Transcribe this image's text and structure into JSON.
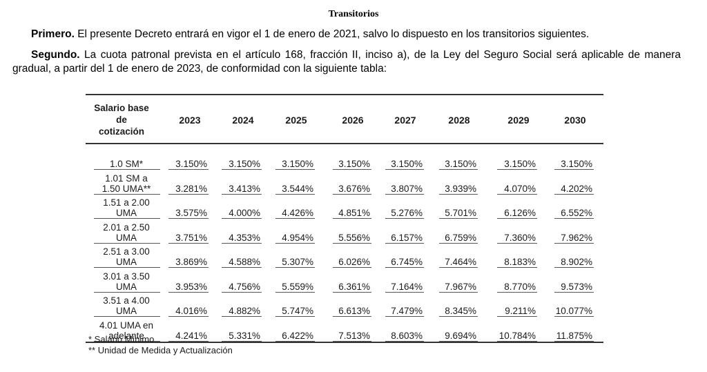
{
  "heading": "Transitorios",
  "primero": {
    "label": "Primero.",
    "text": " El presente Decreto entrará en vigor el 1 de enero de 2021, salvo lo dispuesto en los transitorios siguientes."
  },
  "segundo": {
    "label": "Segundo.",
    "text": " La cuota patronal prevista en el artículo 168, fracción II, inciso a), de la Ley del Seguro Social será aplicable de manera gradual, a partir del 1 de enero de 2023, de conformidad con la siguiente tabla:"
  },
  "table": {
    "header_first_line1": "Salario base",
    "header_first_line2": "de",
    "header_first_line3": "cotización",
    "years": [
      "2023",
      "2024",
      "2025",
      "2026",
      "2027",
      "2028",
      "2029",
      "2030"
    ],
    "rows": [
      {
        "l1": "",
        "l2": "1.0 SM*",
        "v": [
          "3.150%",
          "3.150%",
          "3.150%",
          "3.150%",
          "3.150%",
          "3.150%",
          "3.150%",
          "3.150%"
        ]
      },
      {
        "l1": "1.01 SM a",
        "l2": "1.50 UMA**",
        "v": [
          "3.281%",
          "3.413%",
          "3.544%",
          "3.676%",
          "3.807%",
          "3.939%",
          "4.070%",
          "4.202%"
        ]
      },
      {
        "l1": "1.51 a 2.00",
        "l2": "UMA",
        "v": [
          "3.575%",
          "4.000%",
          "4.426%",
          "4.851%",
          "5.276%",
          "5.701%",
          "6.126%",
          "6.552%"
        ]
      },
      {
        "l1": "2.01 a 2.50",
        "l2": "UMA",
        "v": [
          "3.751%",
          "4.353%",
          "4.954%",
          "5.556%",
          "6.157%",
          "6.759%",
          "7.360%",
          "7.962%"
        ]
      },
      {
        "l1": "2.51 a 3.00",
        "l2": "UMA",
        "v": [
          "3.869%",
          "4.588%",
          "5.307%",
          "6.026%",
          "6.745%",
          "7.464%",
          "8.183%",
          "8.902%"
        ]
      },
      {
        "l1": "3.01 a 3.50",
        "l2": "UMA",
        "v": [
          "3.953%",
          "4.756%",
          "5.559%",
          "6.361%",
          "7.164%",
          "7.967%",
          "8.770%",
          "9.573%"
        ]
      },
      {
        "l1": "3.51 a 4.00",
        "l2": "UMA",
        "v": [
          "4.016%",
          "4.882%",
          "5.747%",
          "6.613%",
          "7.479%",
          "8.345%",
          "9.211%",
          "10.077%"
        ]
      },
      {
        "l1": "4.01 UMA en",
        "l2": "adelante",
        "v": [
          "4.241%",
          "5.331%",
          "6.422%",
          "7.513%",
          "8.603%",
          "9.694%",
          "10.784%",
          "11.875%"
        ]
      }
    ],
    "footnote1": "* Salario Mínimo",
    "footnote2": "** Unidad de Medida y Actualización"
  }
}
